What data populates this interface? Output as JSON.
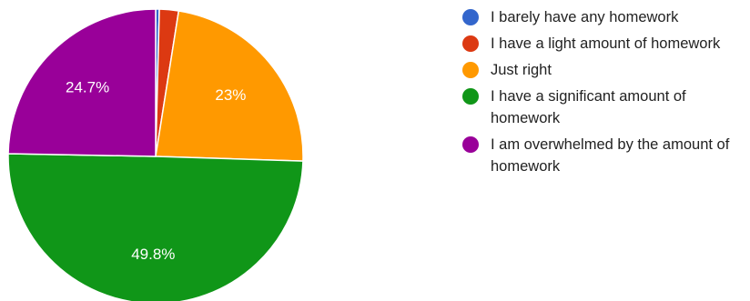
{
  "chart_data": {
    "type": "pie",
    "title": "",
    "slices": [
      {
        "label": "I barely have any homework",
        "value": 0.4,
        "display": "",
        "color": "#3366cc"
      },
      {
        "label": "I have a light amount of homework",
        "value": 2.1,
        "display": "",
        "color": "#dc3912"
      },
      {
        "label": "Just right",
        "value": 23.0,
        "display": "23%",
        "color": "#ff9900"
      },
      {
        "label": "I have a significant amount of homework",
        "value": 49.8,
        "display": "49.8%",
        "color": "#109618"
      },
      {
        "label": "I am overwhelmed by the amount of homework",
        "value": 24.7,
        "display": "24.7%",
        "color": "#990099"
      }
    ],
    "legend_position": "right"
  }
}
